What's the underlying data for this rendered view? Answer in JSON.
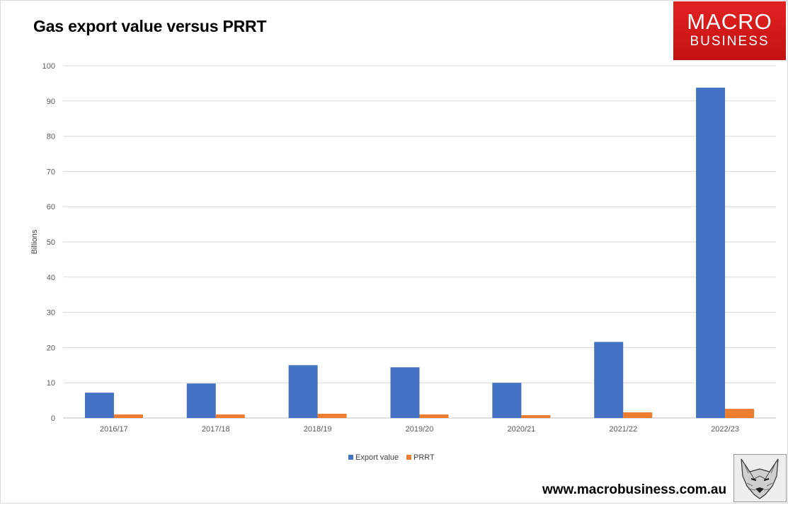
{
  "chart_data": {
    "type": "bar",
    "title": "Gas export value versus PRRT",
    "ylabel": "Billions",
    "xlabel": "",
    "categories": [
      "2016/17",
      "2017/18",
      "2018/19",
      "2019/20",
      "2020/21",
      "2021/22",
      "2022/23"
    ],
    "series": [
      {
        "name": "Export value",
        "values": [
          7.2,
          9.8,
          15.0,
          14.4,
          10.0,
          21.6,
          93.8
        ],
        "color": "#4472c4"
      },
      {
        "name": "PRRT",
        "values": [
          1.0,
          1.0,
          1.2,
          1.0,
          0.8,
          1.6,
          2.6
        ],
        "color": "#ed7d31"
      }
    ],
    "ylim": [
      0,
      100
    ],
    "yticks": [
      0,
      10,
      20,
      30,
      40,
      50,
      60,
      70,
      80,
      90,
      100
    ],
    "grid": true,
    "legend_position": "bottom"
  },
  "branding": {
    "logo_line1": "MACRO",
    "logo_line2": "BUSINESS",
    "url": "www.macrobusiness.com.au",
    "logo_bg": "#d91c1c",
    "mascot_icon": "fox-icon"
  }
}
